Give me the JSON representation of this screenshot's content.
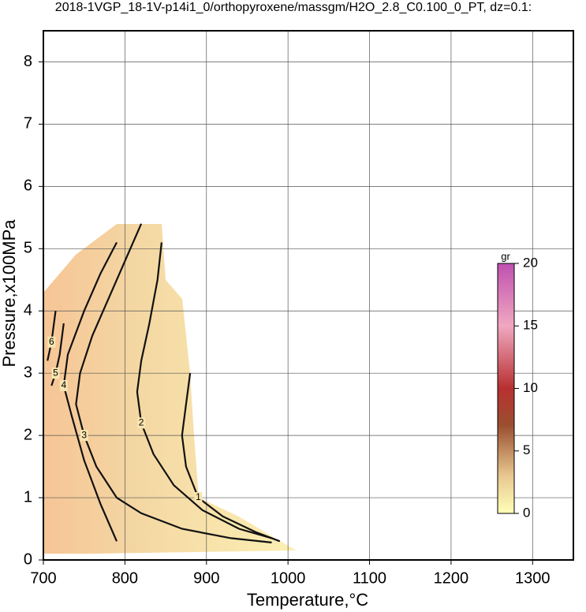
{
  "chart_data": {
    "type": "contour",
    "title": "2018-1VGP_18-1V-p14i1_0/orthopyroxene/massgm/H2O_2.8_C0.100_0_PT, dz=0.1:",
    "x_label": "Temperature,°C",
    "y_label": "Pressure,x100MPa",
    "xlim": [
      700,
      1350
    ],
    "ylim": [
      0,
      8.5
    ],
    "xticks": [
      700,
      800,
      900,
      1000,
      1100,
      1200,
      1300
    ],
    "yticks": [
      0,
      1,
      2,
      3,
      4,
      5,
      6,
      7,
      8
    ],
    "grid": true,
    "contours": [
      {
        "level": 1,
        "x": [
          880,
          875,
          870,
          875,
          890,
          920,
          960,
          990
        ],
        "y": [
          3.0,
          2.5,
          2.0,
          1.5,
          1.0,
          0.7,
          0.45,
          0.3
        ]
      },
      {
        "level": 2,
        "x": [
          845,
          840,
          830,
          820,
          815,
          820,
          835,
          860,
          895,
          940,
          980
        ],
        "y": [
          5.1,
          4.5,
          3.8,
          3.2,
          2.7,
          2.2,
          1.7,
          1.2,
          0.8,
          0.5,
          0.35
        ]
      },
      {
        "level": 3,
        "x": [
          820,
          800,
          780,
          760,
          745,
          740,
          750,
          765,
          790,
          820,
          870,
          930,
          980
        ],
        "y": [
          5.4,
          4.8,
          4.2,
          3.6,
          3.0,
          2.5,
          2.0,
          1.5,
          1.0,
          0.75,
          0.5,
          0.35,
          0.28
        ]
      },
      {
        "level": 4,
        "x": [
          790,
          770,
          750,
          730,
          725,
          735,
          750,
          770,
          790
        ],
        "y": [
          5.1,
          4.6,
          4.0,
          3.3,
          2.8,
          2.3,
          1.6,
          0.9,
          0.3
        ]
      },
      {
        "level": 5,
        "x": [
          725,
          720,
          715,
          710
        ],
        "y": [
          3.8,
          3.3,
          3.0,
          2.8
        ]
      },
      {
        "level": 6,
        "x": [
          715,
          710,
          705
        ],
        "y": [
          4.0,
          3.5,
          3.2
        ]
      }
    ],
    "colorbar": {
      "label": "gr",
      "lim": [
        0,
        20
      ],
      "ticks": [
        0,
        5,
        10,
        15,
        20
      ]
    }
  }
}
